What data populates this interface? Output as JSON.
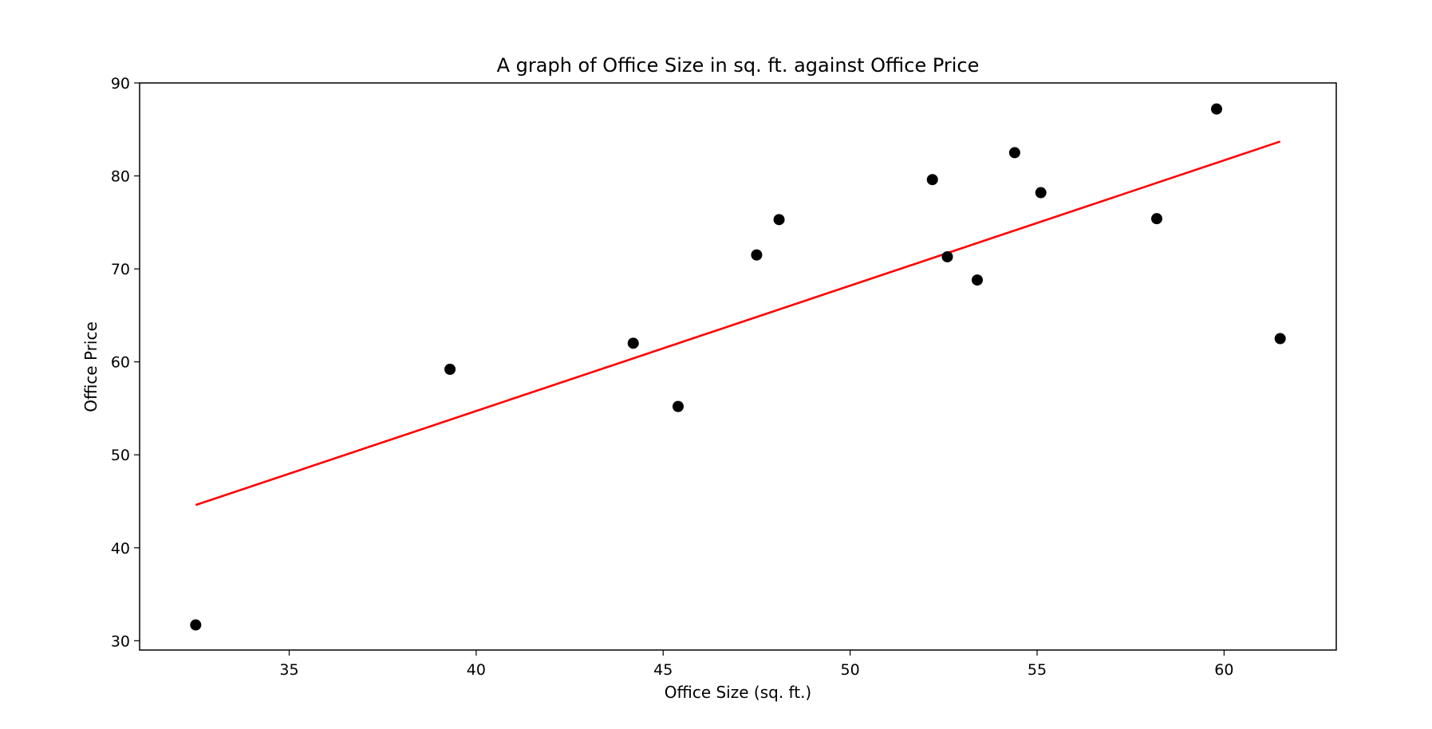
{
  "chart_data": {
    "type": "scatter",
    "title": "A graph of Office Size in sq. ft. against Office Price",
    "xlabel": "Office Size (sq. ft.)",
    "ylabel": "Office Price",
    "xlim": [
      31,
      63
    ],
    "ylim": [
      29,
      90
    ],
    "xticks": [
      35,
      40,
      45,
      50,
      55,
      60
    ],
    "yticks": [
      30,
      40,
      50,
      60,
      70,
      80,
      90
    ],
    "grid": false,
    "series": [
      {
        "type": "scatter",
        "color": "#000000",
        "points": [
          {
            "x": 32.5,
            "y": 31.7
          },
          {
            "x": 39.3,
            "y": 59.2
          },
          {
            "x": 44.2,
            "y": 62.0
          },
          {
            "x": 45.4,
            "y": 55.2
          },
          {
            "x": 47.5,
            "y": 71.5
          },
          {
            "x": 48.1,
            "y": 75.3
          },
          {
            "x": 52.2,
            "y": 79.6
          },
          {
            "x": 52.6,
            "y": 71.3
          },
          {
            "x": 53.4,
            "y": 68.8
          },
          {
            "x": 54.4,
            "y": 82.5
          },
          {
            "x": 55.1,
            "y": 78.2
          },
          {
            "x": 58.2,
            "y": 75.4
          },
          {
            "x": 59.8,
            "y": 87.2
          },
          {
            "x": 61.5,
            "y": 62.5
          }
        ]
      },
      {
        "type": "line",
        "color": "#ff0000",
        "points": [
          {
            "x": 32.5,
            "y": 44.6
          },
          {
            "x": 61.5,
            "y": 83.7
          }
        ]
      }
    ]
  }
}
